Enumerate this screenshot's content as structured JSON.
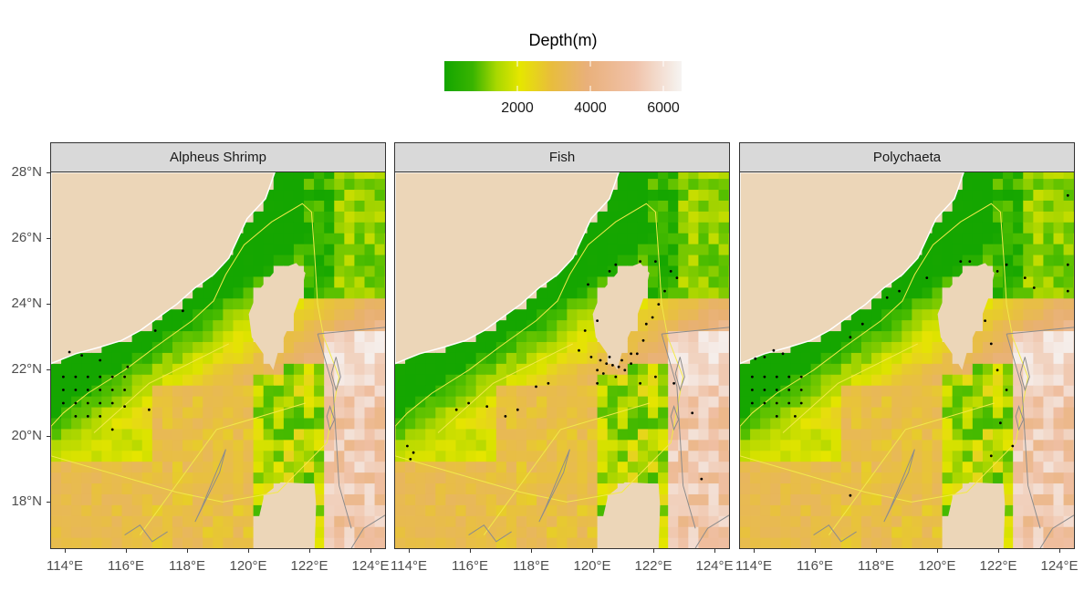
{
  "legend": {
    "title": "Depth(m)",
    "ticks": [
      {
        "label": "2000",
        "value": 2000
      },
      {
        "label": "4000",
        "value": 4000
      },
      {
        "label": "6000",
        "value": 6000
      }
    ],
    "range": [
      0,
      6500
    ],
    "colors": [
      "#13a500",
      "#8fd100",
      "#e6e600",
      "#e8b24e",
      "#eeb99a",
      "#f5f0ee"
    ]
  },
  "panels": [
    {
      "title": "Alpheus Shrimp"
    },
    {
      "title": "Fish"
    },
    {
      "title": "Polychaeta"
    }
  ],
  "y_axis": {
    "ticks": [
      {
        "label": "28°N",
        "value": 28
      },
      {
        "label": "26°N",
        "value": 26
      },
      {
        "label": "24°N",
        "value": 24
      },
      {
        "label": "22°N",
        "value": 22
      },
      {
        "label": "20°N",
        "value": 20
      },
      {
        "label": "18°N",
        "value": 18
      }
    ]
  },
  "x_axis": {
    "ticks": [
      {
        "label": "114°E",
        "value": 114
      },
      {
        "label": "116°E",
        "value": 116
      },
      {
        "label": "118°E",
        "value": 118
      },
      {
        "label": "120°E",
        "value": 120
      },
      {
        "label": "122°E",
        "value": 122
      },
      {
        "label": "124°E",
        "value": 124
      }
    ]
  },
  "colors": {
    "land": "#ecd6b8",
    "shallow": "#13a500",
    "boundary_yellow": "#f2e94a",
    "contour_grey": "#8c8c8c",
    "point": "#000000",
    "strip": "#d9d9d9"
  }
}
